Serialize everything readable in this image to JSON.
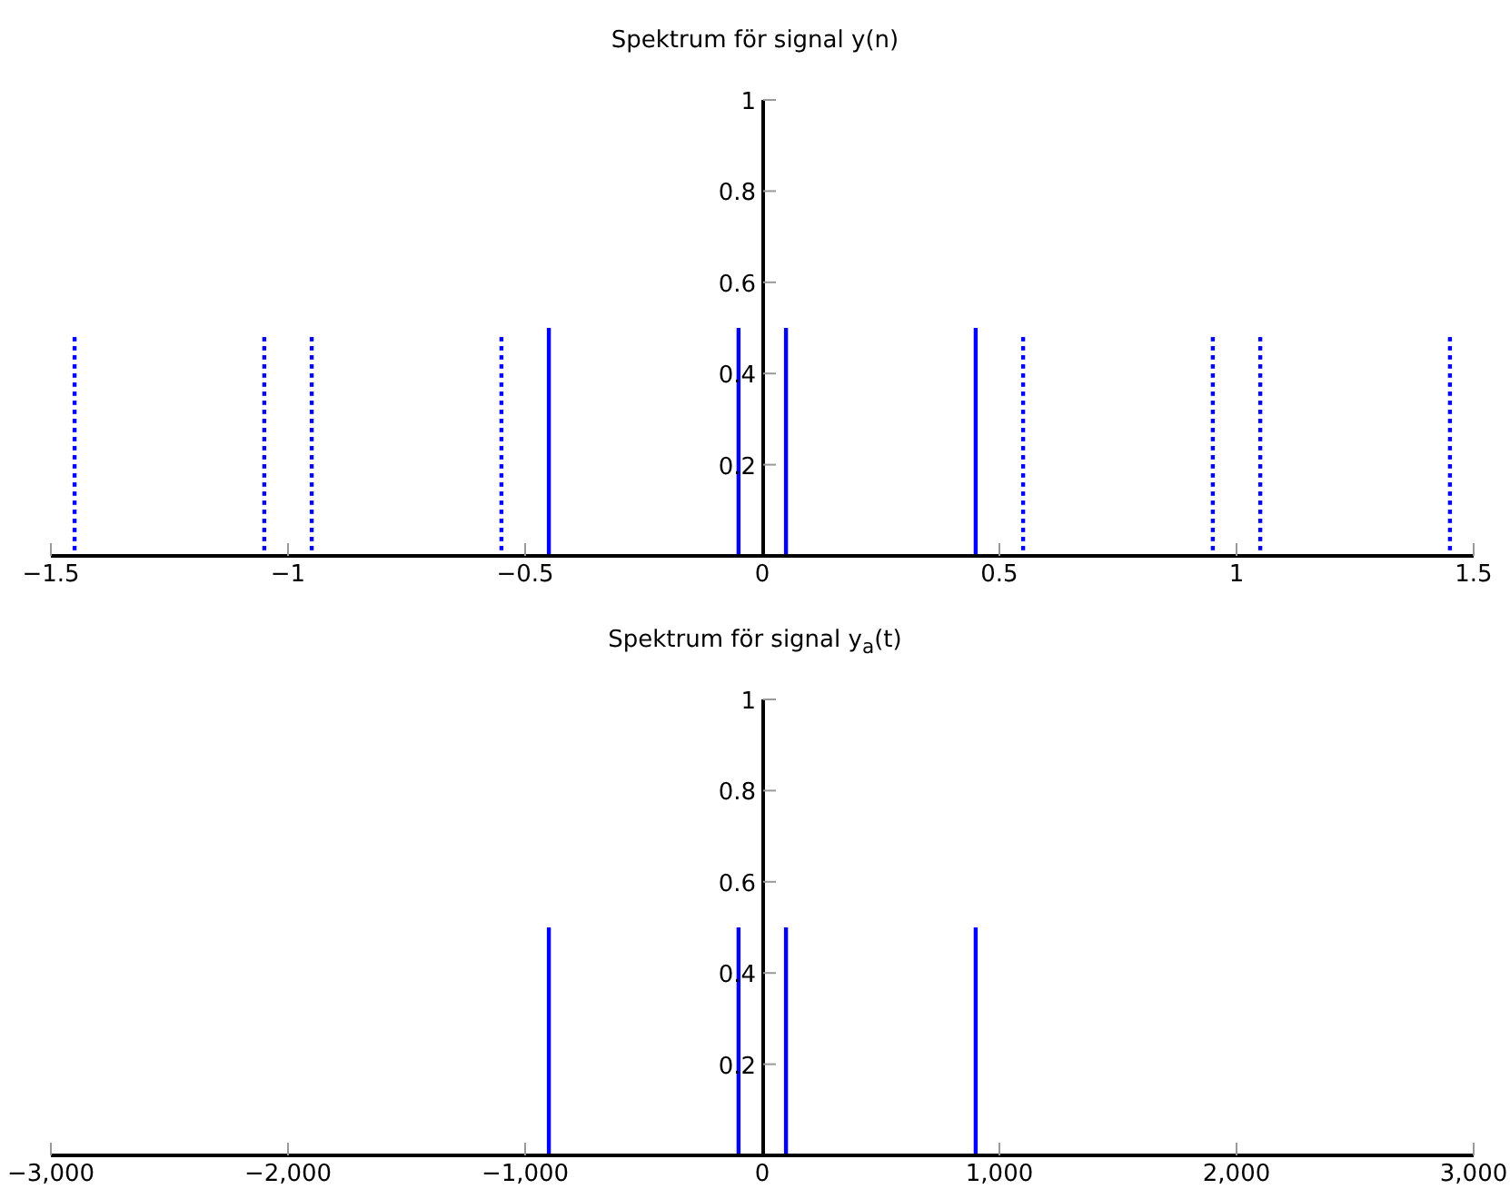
{
  "chart_data": [
    {
      "type": "bar",
      "title": "Spektrum för signal y(n)",
      "xlim": [
        -1.5,
        1.5
      ],
      "xticks": [
        {
          "value": -1.5,
          "label": "−1.5"
        },
        {
          "value": -1,
          "label": "−1"
        },
        {
          "value": -0.5,
          "label": "−0.5"
        },
        0,
        0.5,
        1,
        1.5
      ],
      "ylim": [
        0,
        1
      ],
      "yticks": [
        0.2,
        0.4,
        0.6,
        0.8,
        1
      ],
      "series": [
        {
          "color": "#0000ff",
          "line_style": "solid",
          "x": [
            -0.45,
            -0.05,
            0.05,
            0.45
          ],
          "values": [
            0.5,
            0.5,
            0.5,
            0.5
          ]
        },
        {
          "color": "#0000ff",
          "line_style": "dotted",
          "x": [
            -1.45,
            -1.05,
            -0.95,
            -0.55,
            0.55,
            0.95,
            1.05,
            1.45
          ],
          "values": [
            0.48,
            0.48,
            0.48,
            0.48,
            0.48,
            0.48,
            0.48,
            0.48
          ]
        }
      ]
    },
    {
      "type": "bar",
      "title": "Spektrum för signal y$_{a}$(t)",
      "xlim": [
        -3000,
        3000
      ],
      "xticks": [
        {
          "value": -3000,
          "label": "−3,000"
        },
        {
          "value": -2000,
          "label": "−2,000"
        },
        {
          "value": -1000,
          "label": "−1,000"
        },
        0,
        {
          "value": 1000,
          "label": "1,000"
        },
        {
          "value": 2000,
          "label": "2,000"
        },
        {
          "value": 3000,
          "label": "3,000"
        }
      ],
      "ylim": [
        0,
        1
      ],
      "yticks": [
        0.2,
        0.4,
        0.6,
        0.8,
        1
      ],
      "series": [
        {
          "color": "#0000ff",
          "line_style": "solid",
          "x": [
            -900,
            -100,
            100,
            900
          ],
          "values": [
            0.5,
            0.5,
            0.5,
            0.5
          ]
        }
      ]
    }
  ]
}
